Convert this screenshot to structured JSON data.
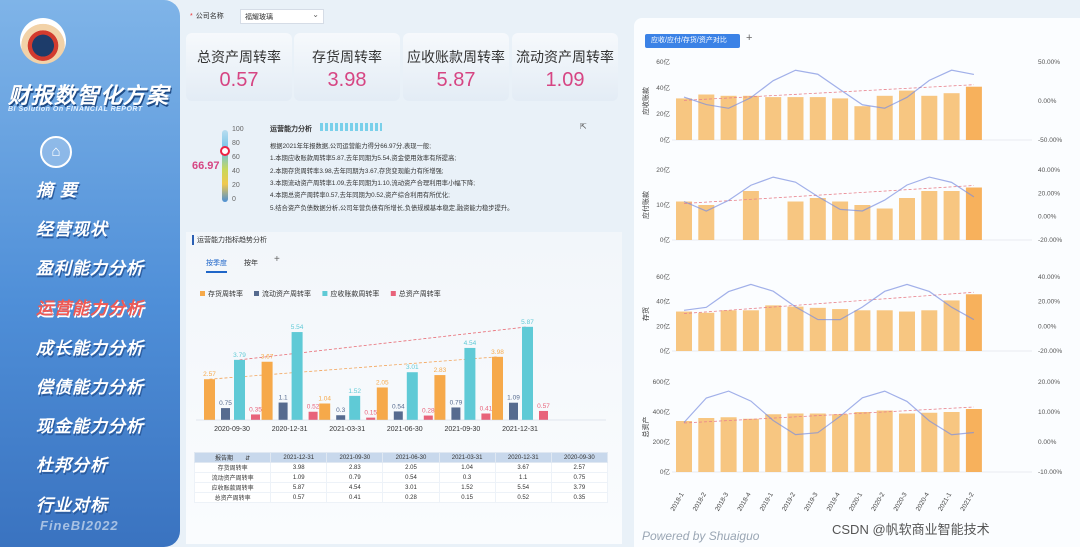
{
  "sidebar": {
    "brand_title": "财报数智化方案",
    "brand_subtitle": "BI Solution On FINANCIAL REPORT",
    "nav": [
      "摘 要",
      "经营现状",
      "盈利能力分析",
      "运营能力分析",
      "成长能力分析",
      "偿债能力分析",
      "现金能力分析",
      "杜邦分析",
      "行业对标"
    ],
    "active_index": 3,
    "footer": "FineBI2022"
  },
  "filter": {
    "label": "公司名称",
    "required": "*",
    "value": "福耀玻璃",
    "caret": "⌄"
  },
  "kpis": [
    {
      "label": "总资产周转率",
      "value": "0.57"
    },
    {
      "label": "存货周转率",
      "value": "3.98"
    },
    {
      "label": "应收账款周转率",
      "value": "5.87"
    },
    {
      "label": "流动资产周转率",
      "value": "1.09"
    }
  ],
  "summary": {
    "score": "66.97",
    "score_value": 66.97,
    "ticks": [
      "100",
      "80",
      "60",
      "40",
      "20",
      "0"
    ],
    "title": "运营能力分析",
    "lines": [
      "根据2021年年报数据,公司运营能力得分66.97分,表现一般;",
      "1.本期应收账款周转率5.87,去年同期为5.54,资金使用效率有所提高;",
      "2.本期存货周转率3.98,去年同期为3.67,存货变现能力有所增强;",
      "3.本期流动资产周转率1.09,去年同期为1.10,流动资产合理利用率小幅下降;",
      "4.本期总资产周转率0.57,去年同期为0.52,资产综合利用有所优化;",
      "5.结合资产负债数据分析,公司年营负债有所增长,负债规模基本稳定,融资能力稳步提升。"
    ]
  },
  "trend": {
    "title": "运营能力指标趋势分析",
    "tabs": [
      "按季度",
      "按年"
    ],
    "add": "+",
    "chart_data": {
      "type": "bar",
      "categories": [
        "2020-09-30",
        "2020-12-31",
        "2021-03-31",
        "2021-06-30",
        "2021-09-30",
        "2021-12-31"
      ],
      "series": [
        {
          "name": "存货周转率",
          "color": "#f6a94a",
          "values": [
            2.57,
            3.67,
            1.04,
            2.05,
            2.83,
            3.98
          ]
        },
        {
          "name": "流动资产周转率",
          "color": "#566b8f",
          "values": [
            0.75,
            1.1,
            0.3,
            0.54,
            0.79,
            1.09
          ]
        },
        {
          "name": "应收账款周转率",
          "color": "#5fcad6",
          "values": [
            3.79,
            5.54,
            1.52,
            3.01,
            4.54,
            5.87
          ]
        },
        {
          "name": "总资产周转率",
          "color": "#e8637a",
          "values": [
            0.35,
            0.52,
            0.15,
            0.28,
            0.41,
            0.57
          ]
        }
      ],
      "labels": [
        [
          "2.57",
          "0.75",
          "3.79",
          "0.35"
        ],
        [
          "3.67",
          "1.1",
          "5.54",
          "0.52"
        ],
        [
          "1.04",
          "0.3",
          "1.52",
          "0.15"
        ],
        [
          "2.05",
          "0.54",
          "3.01",
          "0.28"
        ],
        [
          "2.83",
          "0.79",
          "4.54",
          "0.41"
        ],
        [
          "3.98",
          "1.09",
          "5.87",
          "0.57"
        ]
      ],
      "ylim": [
        0,
        6.3
      ]
    }
  },
  "table": {
    "header_first": "报告期",
    "sort_icon": "⇵",
    "columns": [
      "2021-12-31",
      "2021-09-30",
      "2021-06-30",
      "2021-03-31",
      "2020-12-31",
      "2020-09-30"
    ],
    "rows": [
      {
        "name": "存货周转率",
        "values": [
          "3.98",
          "2.83",
          "2.05",
          "1.04",
          "3.67",
          "2.57"
        ]
      },
      {
        "name": "流动资产周转率",
        "values": [
          "1.09",
          "0.79",
          "0.54",
          "0.3",
          "1.1",
          "0.75"
        ]
      },
      {
        "name": "应收账款周转率",
        "values": [
          "5.87",
          "4.54",
          "3.01",
          "1.52",
          "5.54",
          "3.79"
        ]
      },
      {
        "name": "总资产周转率",
        "values": [
          "0.57",
          "0.41",
          "0.28",
          "0.15",
          "0.52",
          "0.35"
        ]
      }
    ]
  },
  "right": {
    "tab": "应收/应付/存货/资产对比",
    "add": "+",
    "quarters": [
      "2018-1",
      "2018-2",
      "2018-3",
      "2018-4",
      "2019-1",
      "2019-2",
      "2019-3",
      "2019-4",
      "2020-1",
      "2020-2",
      "2020-3",
      "2020-4",
      "2021-1",
      "2021-2"
    ],
    "chart_data": [
      {
        "type": "bar",
        "ylabel": "应收账款",
        "yticks": [
          "60亿",
          "40亿",
          "20亿",
          "0亿"
        ],
        "y2ticks": [
          "50.00%",
          "0.00%",
          "-50.00%"
        ],
        "ylim": [
          0,
          60
        ],
        "values": [
          32,
          35,
          34,
          34,
          33,
          33,
          33,
          32,
          26,
          34,
          38,
          34,
          36,
          41
        ]
      },
      {
        "type": "bar",
        "ylabel": "应付账款",
        "yticks": [
          "20亿",
          "10亿",
          "0亿"
        ],
        "y2ticks": [
          "40.00%",
          "20.00%",
          "0.00%",
          "-20.00%"
        ],
        "ylim": [
          0,
          20
        ],
        "values": [
          11,
          10,
          0,
          14,
          0,
          11,
          12,
          11,
          10,
          9,
          12,
          14,
          14,
          15
        ]
      },
      {
        "type": "bar",
        "ylabel": "存货",
        "yticks": [
          "60亿",
          "40亿",
          "20亿",
          "0亿"
        ],
        "y2ticks": [
          "40.00%",
          "20.00%",
          "0.00%",
          "-20.00%"
        ],
        "ylim": [
          0,
          60
        ],
        "values": [
          32,
          31,
          33,
          33,
          37,
          36,
          35,
          34,
          33,
          33,
          32,
          33,
          41,
          46
        ]
      },
      {
        "type": "bar",
        "ylabel": "总资产",
        "yticks": [
          "600亿",
          "400亿",
          "200亿",
          "0亿"
        ],
        "y2ticks": [
          "20.00%",
          "10.00%",
          "0.00%",
          "-10.00%"
        ],
        "ylim": [
          0,
          600
        ],
        "values": [
          340,
          360,
          365,
          355,
          385,
          390,
          390,
          385,
          400,
          410,
          390,
          395,
          400,
          420
        ]
      }
    ]
  },
  "footer": {
    "powered": "Powered by Shuaiguo",
    "watermark": "CSDN @帆软商业智能技术"
  },
  "colors": {
    "accent": "#1f66c8",
    "kpi_value": "#d64583",
    "bar": "#f6c073",
    "bar_last": "#f6a94a"
  }
}
